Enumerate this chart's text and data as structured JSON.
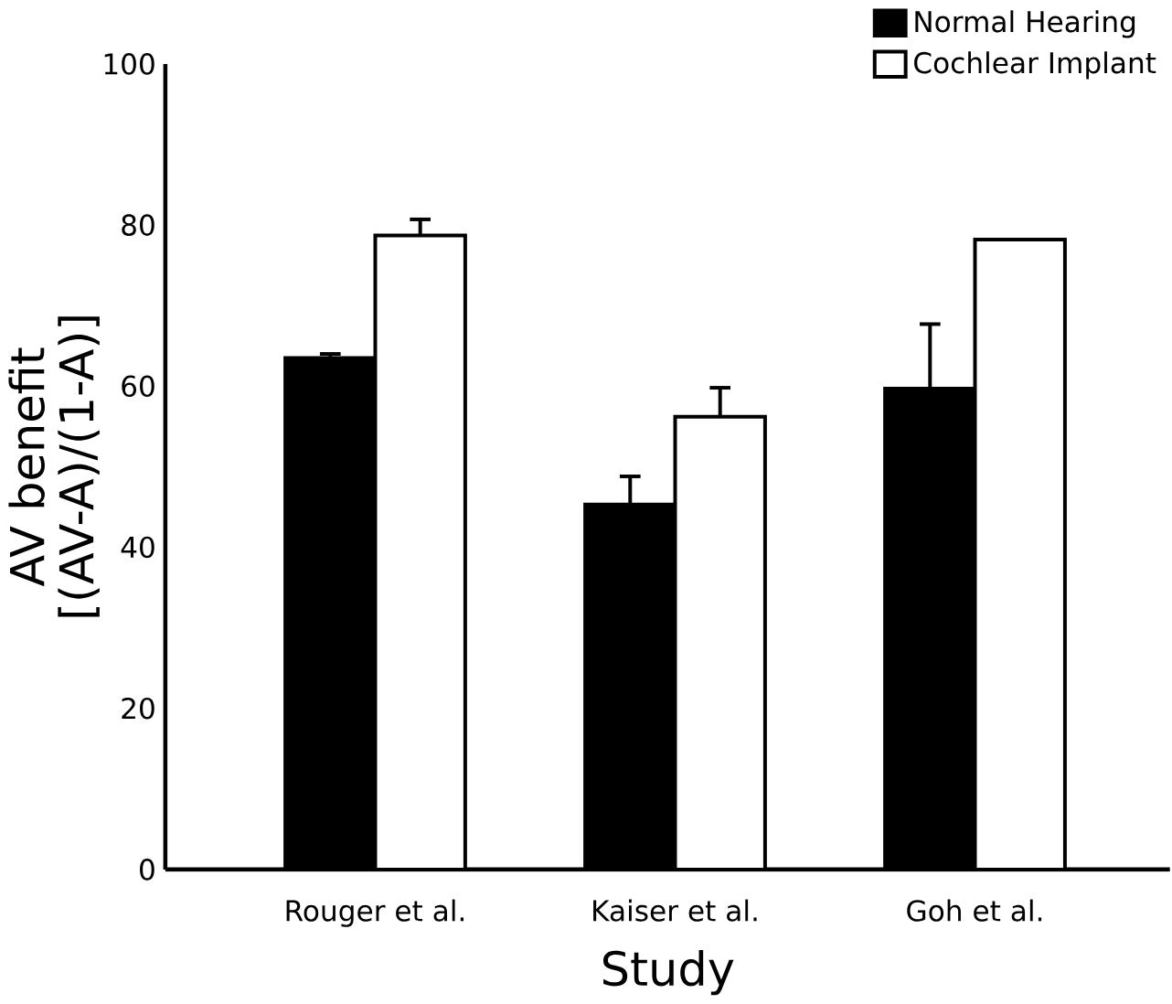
{
  "chart_data": {
    "type": "bar",
    "xlabel": "Study",
    "ylabel": "AV benefit\n[(AV-A)/(1-A)]",
    "categories": [
      "Rouger et al.",
      "Kaiser et al.",
      "Goh et al."
    ],
    "series": [
      {
        "name": "Normal Hearing",
        "color": "#000000",
        "values": [
          63.5,
          45.3,
          59.7
        ],
        "errors": [
          0.5,
          3.5,
          8
        ]
      },
      {
        "name": "Cochlear Implant",
        "color": "#ffffff",
        "values": [
          78.7,
          56.2,
          78.2
        ],
        "errors": [
          2,
          3.6,
          null
        ]
      }
    ],
    "ylim": [
      0,
      100
    ],
    "yticks": [
      0,
      20,
      40,
      60,
      80,
      100
    ],
    "legend": "top right",
    "grid": false
  }
}
